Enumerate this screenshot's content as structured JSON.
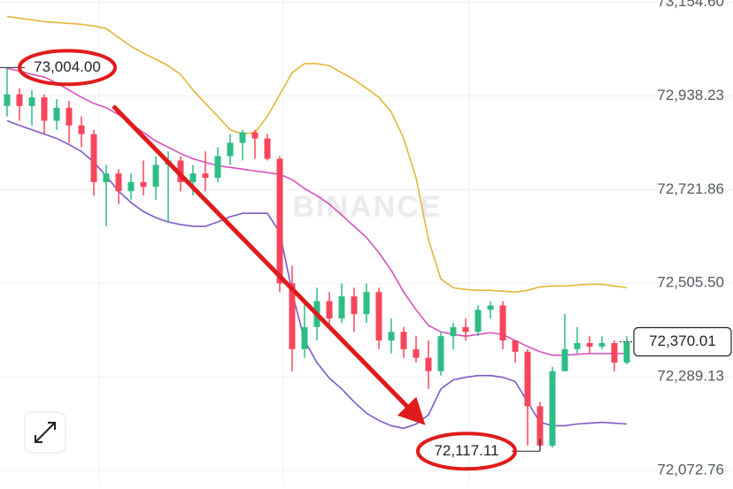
{
  "chart_data": {
    "type": "candlestick",
    "watermark": "BINANCE",
    "ylim": [
      72040,
      73160
    ],
    "yticks": [
      {
        "value": 73154.6,
        "label": "73,154.60"
      },
      {
        "value": 72938.23,
        "label": "72,938.23"
      },
      {
        "value": 72721.86,
        "label": "72,721.86"
      },
      {
        "value": 72505.5,
        "label": "72,505.50"
      },
      {
        "value": 72289.13,
        "label": "72,289.13"
      },
      {
        "value": 72072.76,
        "label": "72,072.76"
      }
    ],
    "grid": true,
    "up_color": "#2ebd85",
    "down_color": "#f6465d",
    "open": [
      72915,
      72942,
      72915,
      72935,
      72881,
      72911,
      72870,
      72850,
      72739,
      72759,
      72718,
      72739,
      72728,
      72779,
      72789,
      72739,
      72759,
      72749,
      72799,
      72830,
      72854,
      72840,
      72793,
      72505,
      72353,
      72404,
      72464,
      72424,
      72475,
      72434,
      72485,
      72373,
      72393,
      72353,
      72333,
      72302,
      72383,
      72404,
      72393,
      72444,
      72454,
      72373,
      72347,
      72221,
      72130,
      72302,
      72353,
      72367,
      72359,
      72367,
      72322
    ],
    "high": [
      73004,
      72956,
      72952,
      72942,
      72931,
      72927,
      72891,
      72860,
      72779,
      72769,
      72759,
      72789,
      72799,
      72810,
      72799,
      72779,
      72810,
      72820,
      72850,
      72860,
      72860,
      72850,
      72799,
      72546,
      72464,
      72495,
      72485,
      72505,
      72495,
      72505,
      72495,
      72424,
      72404,
      72383,
      72373,
      72393,
      72414,
      72424,
      72454,
      72464,
      72464,
      72373,
      72353,
      72231,
      72312,
      72434,
      72404,
      72383,
      72383,
      72373,
      72383
    ],
    "low": [
      72891,
      72881,
      72870,
      72850,
      72860,
      72830,
      72820,
      72708,
      72637,
      72688,
      72698,
      72708,
      72698,
      72647,
      72718,
      72708,
      72718,
      72739,
      72779,
      72789,
      72793,
      72789,
      72485,
      72302,
      72333,
      72373,
      72404,
      72414,
      72393,
      72414,
      72353,
      72343,
      72333,
      72322,
      72261,
      72292,
      72353,
      72373,
      72383,
      72424,
      72353,
      72322,
      72130,
      72117.11,
      72125,
      72302,
      72343,
      72343,
      72353,
      72302,
      72318
    ],
    "close": [
      72942,
      72915,
      72935,
      72881,
      72911,
      72870,
      72850,
      72739,
      72759,
      72718,
      72739,
      72728,
      72779,
      72789,
      72739,
      72759,
      72749,
      72799,
      72830,
      72854,
      72840,
      72793,
      72505,
      72353,
      72404,
      72464,
      72424,
      72475,
      72434,
      72485,
      72373,
      72393,
      72353,
      72333,
      72302,
      72383,
      72404,
      72393,
      72444,
      72454,
      72373,
      72347,
      72221,
      72130,
      72302,
      72353,
      72367,
      72359,
      72367,
      72322,
      72370.01
    ],
    "bands": [
      {
        "color": "#e3b53b",
        "values": [
          73122,
          73118,
          73114,
          73110,
          73108,
          73106,
          73104,
          73100,
          73094,
          73073,
          73053,
          73037,
          73023,
          73008,
          72988,
          72952,
          72921,
          72891,
          72860,
          72850,
          72854,
          72891,
          72941,
          72992,
          73013,
          73013,
          73008,
          72992,
          72976,
          72956,
          72935,
          72901,
          72840,
          72749,
          72606,
          72515,
          72495,
          72491,
          72489,
          72489,
          72487,
          72485,
          72489,
          72497,
          72499,
          72499,
          72501,
          72503,
          72503,
          72499,
          72495
        ]
      },
      {
        "color": "#d552bd",
        "values": [
          73002,
          72996,
          72988,
          72982,
          72968,
          72952,
          72935,
          72921,
          72911,
          72895,
          72874,
          72854,
          72834,
          72820,
          72805,
          72793,
          72785,
          72777,
          72773,
          72769,
          72765,
          72761,
          72757,
          72745,
          72724,
          72708,
          72688,
          72663,
          72637,
          72611,
          72576,
          72535,
          72485,
          72444,
          72408,
          72393,
          72387,
          72383,
          72387,
          72391,
          72387,
          72373,
          72359,
          72347,
          72339,
          72339,
          72341,
          72343,
          72343,
          72343,
          72343
        ]
      },
      {
        "color": "#7e5bc7",
        "values": [
          72881,
          72870,
          72860,
          72850,
          72840,
          72826,
          72810,
          72785,
          72753,
          72718,
          72692,
          72671,
          72657,
          72647,
          72641,
          72637,
          72637,
          72647,
          72659,
          72667,
          72667,
          72667,
          72623,
          72485,
          72373,
          72322,
          72286,
          72261,
          72231,
          72205,
          72188,
          72176,
          72170,
          72180,
          72201,
          72261,
          72282,
          72288,
          72292,
          72292,
          72288,
          72278,
          72231,
          72184,
          72176,
          72176,
          72180,
          72182,
          72184,
          72182,
          72180
        ]
      }
    ],
    "annotations": {
      "high": {
        "value": 73004,
        "label": "73,004.00"
      },
      "low": {
        "value": 72117.11,
        "label": "72,117.11"
      },
      "last": {
        "value": 72370.01,
        "label": "72,370.01"
      }
    }
  }
}
